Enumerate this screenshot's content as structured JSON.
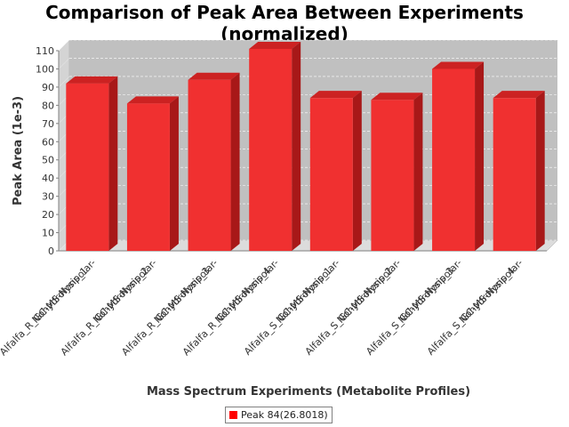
{
  "chart_data": {
    "type": "bar",
    "title_lines": [
      "Comparison of Peak Area Between Experiments",
      "(normalized)"
    ],
    "xlabel": "Mass Spectrum Experiments (Metabolite Profiles)",
    "ylabel": "Peak Area (1e-3)",
    "ylim": [
      0,
      110
    ],
    "yticks": [
      0,
      10,
      20,
      30,
      40,
      50,
      60,
      70,
      80,
      90,
      100,
      110
    ],
    "grid": true,
    "legend_position": "bottom",
    "categories": [
      [
        "Alfalfa_R_GC-MS-Nonpolar-",
        "Nohydrolysis_1"
      ],
      [
        "Alfalfa_R_GC-MS-Nonpolar-",
        "Nohydrolysis_2"
      ],
      [
        "Alfalfa_R_GC-MS-Nonpolar-",
        "Nohydrolysis_3"
      ],
      [
        "Alfalfa_R_GC-MS-Nonpolar-",
        "Nohydrolysis_4"
      ],
      [
        "Alfalfa_S_GC-MS-Nonpolar-",
        "Nohydrolysis_1"
      ],
      [
        "Alfalfa_S_GC-MS-Nonpolar-",
        "Nohydrolysis_2"
      ],
      [
        "Alfalfa_S_GC-MS-Nonpolar-",
        "Nohydrolysis_3"
      ],
      [
        "Alfalfa_S_GC-MS-Nonpolar-",
        "Nohydrolysis_4"
      ]
    ],
    "series": [
      {
        "name": "Peak 84(26.8018)",
        "color": "#ff0000",
        "values": [
          92,
          81,
          94,
          111,
          84,
          83,
          100,
          84
        ]
      }
    ]
  }
}
